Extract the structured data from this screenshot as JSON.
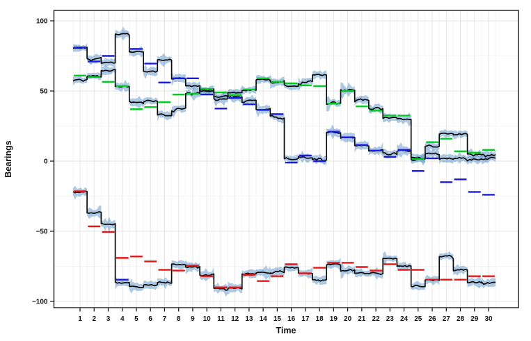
{
  "figure": {
    "title": "",
    "panel": {
      "background": "#FFFFFF",
      "border_color": "#1A1A1A",
      "grid_major_color": "#E3E3E3",
      "grid_minor_color": "#F2F2F2"
    },
    "y_axis": {
      "label": "Bearings",
      "tick_values": [
        100,
        50,
        0,
        -50,
        -100
      ],
      "tick_labels": [
        "100",
        "50",
        "0",
        "−50",
        "−100"
      ],
      "minor_values": [
        75,
        25,
        -25,
        -75
      ]
    },
    "x_axis": {
      "label": "Time",
      "tick_values": [
        1,
        2,
        3,
        4,
        5,
        6,
        7,
        8,
        9,
        10,
        11,
        12,
        13,
        14,
        15,
        16,
        17,
        18,
        19,
        20,
        21,
        22,
        23,
        24,
        25,
        26,
        27,
        28,
        29,
        30
      ]
    }
  },
  "chart_data": {
    "type": "line",
    "subtype": "step-estimates-with-measurement-segments",
    "title": "",
    "xlabel": "Time",
    "ylabel": "Bearings",
    "xlim": [
      -0.9,
      32.0
    ],
    "ylim": [
      -104.5,
      107.4
    ],
    "x": [
      1,
      2,
      3,
      4,
      5,
      6,
      7,
      8,
      9,
      10,
      11,
      12,
      13,
      14,
      15,
      16,
      17,
      18,
      19,
      20,
      21,
      22,
      23,
      24,
      25,
      26,
      27,
      28,
      29,
      30
    ],
    "y_ticks": [
      100,
      50,
      0,
      -50,
      -100
    ],
    "grid": true,
    "legend": "none",
    "colors": {
      "estimate_line": "#0A0A0A",
      "ribbon": "rgba(108,157,206,0.55)",
      "target1_segments": "#1A1AE8",
      "target2_segments": "#00CC22",
      "target3_segments": "#E61414"
    },
    "series": [
      {
        "name": "target-1-estimate",
        "type": "step",
        "color": "#0A0A0A",
        "values": [
          81,
          74,
          70,
          91,
          78,
          64,
          72,
          59,
          54,
          49.5,
          44.5,
          46.5,
          43,
          37,
          32,
          2,
          3,
          1.5,
          21,
          17,
          11.5,
          8,
          5.5,
          7,
          1.5,
          5,
          2,
          2,
          1.5,
          2
        ]
      },
      {
        "name": "target-1-measured-bearings",
        "type": "segments",
        "color": "#1A1AE8",
        "values": [
          81,
          71,
          75,
          -84.5,
          80,
          69.5,
          56,
          59,
          59,
          47.5,
          37.5,
          45,
          40.5,
          36.5,
          33.5,
          -1,
          4,
          0,
          21,
          17,
          11.5,
          7.5,
          3,
          8,
          -7,
          2,
          -15,
          -13,
          -22,
          -24
        ]
      },
      {
        "name": "target-2-estimate",
        "type": "step",
        "color": "#0A0A0A",
        "values": [
          57.5,
          60.5,
          65,
          53,
          42,
          43,
          33.5,
          37.5,
          48.5,
          50.5,
          46,
          49,
          51,
          58,
          57,
          54,
          57,
          62,
          42,
          51,
          43.5,
          37.5,
          31,
          30,
          2.5,
          11,
          20,
          19,
          5,
          4.5
        ]
      },
      {
        "name": "target-2-measured-bearings",
        "type": "segments",
        "color": "#00CC22",
        "values": [
          61,
          60,
          56.5,
          53.5,
          37,
          38.5,
          42,
          47.5,
          48,
          51.5,
          49,
          47,
          51,
          59,
          56.5,
          55.5,
          54,
          53.5,
          41,
          50,
          39,
          36,
          32.5,
          32.5,
          1.5,
          13.5,
          16,
          7,
          6,
          8
        ]
      },
      {
        "name": "target-3-estimate",
        "type": "step",
        "color": "#0A0A0A",
        "values": [
          -22,
          -36.5,
          -45,
          -87,
          -90,
          -88,
          -86.5,
          -73.5,
          -75,
          -81,
          -90.5,
          -90.5,
          -80.5,
          -79.5,
          -79,
          -75.5,
          -80,
          -85,
          -74,
          -78,
          -80,
          -80,
          -69,
          -75,
          -89,
          -85,
          -68,
          -77.5,
          -86.5,
          -86.5
        ]
      },
      {
        "name": "target-3-measured-bearings",
        "type": "segments",
        "color": "#E61414",
        "values": [
          -21.5,
          -46.5,
          -50.5,
          -69,
          -68,
          -71.5,
          -77.5,
          -78,
          -74.5,
          -82,
          -90,
          -90,
          -81,
          -85.5,
          -82,
          -73.5,
          -80,
          -76,
          -72.5,
          -72.5,
          -75.5,
          -78,
          -73.5,
          -77.5,
          -77.5,
          -84.5,
          -84.5,
          -84.5,
          -82,
          -82
        ]
      }
    ]
  }
}
